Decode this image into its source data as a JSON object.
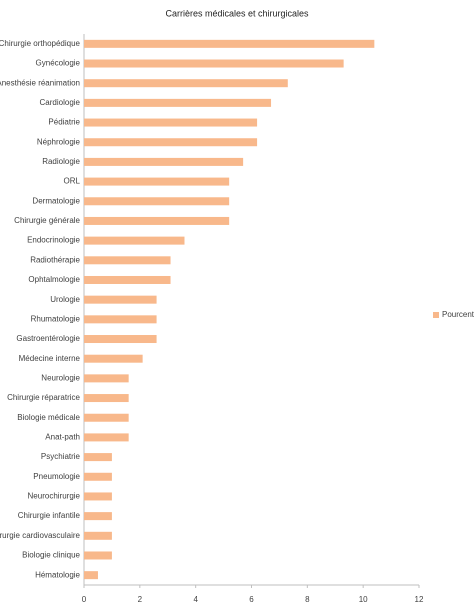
{
  "chart_data": {
    "type": "bar",
    "orientation": "horizontal",
    "title": "Carrières médicales et chirurgicales",
    "categories": [
      "Chirurgie orthopédique",
      "Gynécologie",
      "Anesthésie réanimation",
      "Cardiologie",
      "Pédiatrie",
      "Néphrologie",
      "Radiologie",
      "ORL",
      "Dermatologie",
      "Chirurgie générale",
      "Endocrinologie",
      "Radiothérapie",
      "Ophtalmologie",
      "Urologie",
      "Rhumatologie",
      "Gastroentérologie",
      "Médecine interne",
      "Neurologie",
      "Chirurgie réparatrice",
      "Biologie médicale",
      "Anat-path",
      "Psychiatrie",
      "Pneumologie",
      "Neurochirurgie",
      "Chirurgie infantile",
      "Chirurgie cardiovasculaire",
      "Biologie clinique",
      "Hématologie"
    ],
    "series": [
      {
        "name": "Pourcent",
        "color": "#f8b88b",
        "values": [
          10.4,
          9.3,
          7.3,
          6.7,
          6.2,
          6.2,
          5.7,
          5.2,
          5.2,
          5.2,
          3.6,
          3.1,
          3.1,
          2.6,
          2.6,
          2.6,
          2.1,
          1.6,
          1.6,
          1.6,
          1.6,
          1.0,
          1.0,
          1.0,
          1.0,
          1.0,
          1.0,
          0.5
        ]
      }
    ],
    "xlim": [
      0,
      12
    ],
    "xticks": [
      0,
      2,
      4,
      6,
      8,
      10,
      12
    ],
    "grid": false,
    "legend": "right"
  }
}
